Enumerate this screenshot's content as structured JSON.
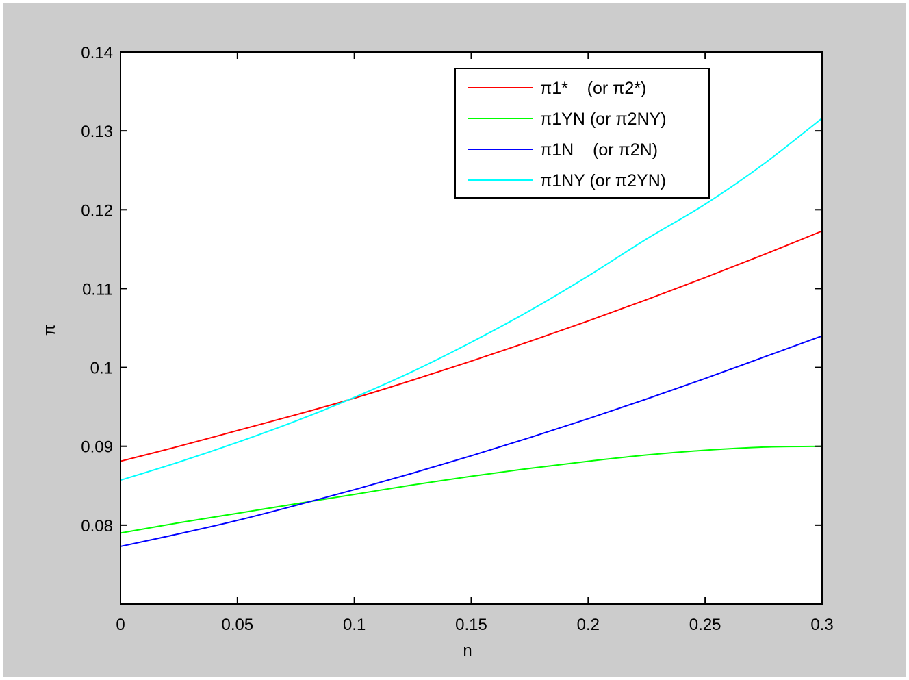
{
  "figure": {
    "background": "#cccccc",
    "axes_background": "#ffffff"
  },
  "chart_data": {
    "type": "line",
    "title": "",
    "xlabel": "n",
    "ylabel": "π",
    "xlim": [
      0,
      0.3
    ],
    "ylim": [
      0.07,
      0.14
    ],
    "grid": false,
    "legend_position": "upper right (inside)",
    "xticks": [
      0,
      0.05,
      0.1,
      0.15,
      0.2,
      0.25,
      0.3
    ],
    "xtick_labels": [
      "0",
      "0.05",
      "0.1",
      "0.15",
      "0.2",
      "0.25",
      "0.3"
    ],
    "yticks": [
      0.08,
      0.09,
      0.1,
      0.11,
      0.12,
      0.13,
      0.14
    ],
    "ytick_labels": [
      "0.08",
      "0.09",
      "0.1",
      "0.11",
      "0.12",
      "0.13",
      "0.14"
    ],
    "x": [
      0,
      0.025,
      0.05,
      0.075,
      0.1,
      0.125,
      0.15,
      0.175,
      0.2,
      0.225,
      0.25,
      0.275,
      0.3
    ],
    "series": [
      {
        "name": "π1*    (or π2*)",
        "color": "#ff0000",
        "values": [
          0.0881,
          0.09,
          0.092,
          0.094,
          0.0961,
          0.0984,
          0.1008,
          0.1033,
          0.1059,
          0.1086,
          0.1114,
          0.1143,
          0.1173
        ]
      },
      {
        "name": "π1YN (or π2NY)",
        "color": "#00ff00",
        "values": [
          0.079,
          0.0803,
          0.0815,
          0.0827,
          0.0839,
          0.0851,
          0.0862,
          0.0872,
          0.0881,
          0.0889,
          0.0895,
          0.0899,
          0.09
        ]
      },
      {
        "name": "π1N    (or π2N)",
        "color": "#0000ff",
        "values": [
          0.0773,
          0.0789,
          0.0806,
          0.0825,
          0.0845,
          0.0866,
          0.0888,
          0.0911,
          0.0935,
          0.096,
          0.0986,
          0.1013,
          0.104
        ]
      },
      {
        "name": "π1NY (or π2YN)",
        "color": "#00ffff",
        "values": [
          0.0857,
          0.088,
          0.0905,
          0.0932,
          0.0962,
          0.0995,
          0.1032,
          0.1072,
          0.1116,
          0.1163,
          0.1207,
          0.1258,
          0.1316
        ]
      }
    ]
  }
}
